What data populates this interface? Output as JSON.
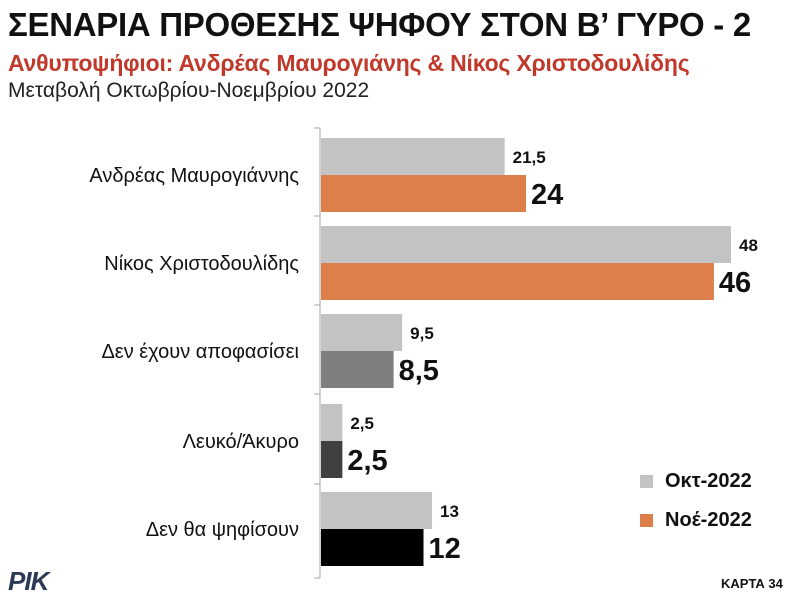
{
  "header": {
    "title": "ΣΕΝΑΡΙΑ ΠΡΟΘΕΣΗΣ ΨΗΦΟΥ ΣΤΟΝ Β’ ΓΥΡΟ - 2",
    "subtitle": "Ανθυποψήφιοι: Ανδρέας Μαυρογιάνης & Νίκος Χριστοδουλίδης",
    "period": "Μεταβολή Οκτωβρίου-Νοεμβρίου 2022"
  },
  "chart_data": {
    "type": "bar",
    "orientation": "horizontal",
    "categories": [
      "Ανδρέας Μαυρογιάννης",
      "Νίκος Χριστοδουλίδης",
      "Δεν έχουν αποφασίσει",
      "Λευκό/Άκυρο",
      "Δεν θα ψηφίσουν"
    ],
    "series": [
      {
        "name": "Οκτ-2022",
        "values": [
          21.5,
          48,
          9.5,
          2.5,
          13
        ],
        "labels": [
          "21,5",
          "48",
          "9,5",
          "2,5",
          "13"
        ],
        "color": "#c3c3c3"
      },
      {
        "name": "Νοέ-2022",
        "values": [
          24,
          46,
          8.5,
          2.5,
          12
        ],
        "labels": [
          "24",
          "46",
          "8,5",
          "2,5",
          "12"
        ],
        "colors": [
          "#dd7f4a",
          "#dd7f4a",
          "#7f7f7f",
          "#404040",
          "#000000"
        ]
      }
    ],
    "xlim": [
      0,
      48
    ],
    "grid": false,
    "legend_position": "bottom-right"
  },
  "legend": [
    {
      "label": "Οκτ-2022",
      "color": "#c3c3c3"
    },
    {
      "label": "Νοέ-2022",
      "color": "#dd7f4a"
    }
  ],
  "footer": {
    "logo": "ΡΙΚ",
    "card": "ΚΑΡΤΑ 34"
  }
}
